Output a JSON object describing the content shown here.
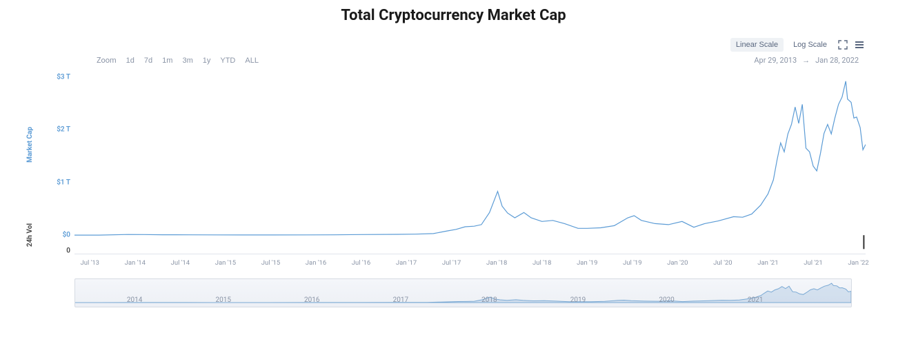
{
  "title": "Total Cryptocurrency Market Cap",
  "scale_buttons": {
    "linear": "Linear Scale",
    "log": "Log Scale"
  },
  "zoom": {
    "label": "Zoom",
    "options": [
      "1d",
      "7d",
      "1m",
      "3m",
      "1y",
      "YTD",
      "ALL"
    ]
  },
  "date_range": {
    "from": "Apr 29, 2013",
    "to": "Jan 28, 2022",
    "arrow": "→"
  },
  "axis_labels": {
    "market_cap": "Market Cap",
    "volume": "24h Vol"
  },
  "chart": {
    "type": "line",
    "line_color": "#5b9bd5",
    "line_width": 1.2,
    "background_color": "#ffffff",
    "yticks_mcap": [
      {
        "v": 0,
        "label": "$0"
      },
      {
        "v": 1,
        "label": "$1 T"
      },
      {
        "v": 2,
        "label": "$2 T"
      },
      {
        "v": 3,
        "label": "$3 T"
      }
    ],
    "ytick_vol": {
      "v": -0.3,
      "label": "0"
    },
    "ylim": [
      -0.35,
      3.1
    ],
    "x_start": 2013.33,
    "x_end": 2022.08,
    "xticks": [
      {
        "x": 2013.5,
        "label": "Jul '13"
      },
      {
        "x": 2014.0,
        "label": "Jan '14"
      },
      {
        "x": 2014.5,
        "label": "Jul '14"
      },
      {
        "x": 2015.0,
        "label": "Jan '15"
      },
      {
        "x": 2015.5,
        "label": "Jul '15"
      },
      {
        "x": 2016.0,
        "label": "Jan '16"
      },
      {
        "x": 2016.5,
        "label": "Jul '16"
      },
      {
        "x": 2017.0,
        "label": "Jan '17"
      },
      {
        "x": 2017.5,
        "label": "Jul '17"
      },
      {
        "x": 2018.0,
        "label": "Jan '18"
      },
      {
        "x": 2018.5,
        "label": "Jul '18"
      },
      {
        "x": 2019.0,
        "label": "Jan '19"
      },
      {
        "x": 2019.5,
        "label": "Jul '19"
      },
      {
        "x": 2020.0,
        "label": "Jan '20"
      },
      {
        "x": 2020.5,
        "label": "Jul '20"
      },
      {
        "x": 2021.0,
        "label": "Jan '21"
      },
      {
        "x": 2021.5,
        "label": "Jul '21"
      },
      {
        "x": 2022.0,
        "label": "Jan '22"
      }
    ],
    "series": [
      [
        2013.33,
        0.001
      ],
      [
        2013.6,
        0.002
      ],
      [
        2013.92,
        0.013
      ],
      [
        2014.1,
        0.012
      ],
      [
        2014.3,
        0.008
      ],
      [
        2014.6,
        0.007
      ],
      [
        2014.9,
        0.005
      ],
      [
        2015.2,
        0.004
      ],
      [
        2015.5,
        0.004
      ],
      [
        2015.9,
        0.006
      ],
      [
        2016.2,
        0.007
      ],
      [
        2016.5,
        0.012
      ],
      [
        2016.9,
        0.016
      ],
      [
        2017.1,
        0.02
      ],
      [
        2017.3,
        0.03
      ],
      [
        2017.45,
        0.08
      ],
      [
        2017.55,
        0.11
      ],
      [
        2017.65,
        0.16
      ],
      [
        2017.75,
        0.17
      ],
      [
        2017.83,
        0.2
      ],
      [
        2017.92,
        0.43
      ],
      [
        2018.01,
        0.83
      ],
      [
        2018.06,
        0.55
      ],
      [
        2018.12,
        0.42
      ],
      [
        2018.2,
        0.33
      ],
      [
        2018.3,
        0.43
      ],
      [
        2018.38,
        0.33
      ],
      [
        2018.5,
        0.26
      ],
      [
        2018.62,
        0.28
      ],
      [
        2018.75,
        0.22
      ],
      [
        2018.9,
        0.13
      ],
      [
        2019.0,
        0.13
      ],
      [
        2019.15,
        0.14
      ],
      [
        2019.3,
        0.18
      ],
      [
        2019.45,
        0.33
      ],
      [
        2019.52,
        0.37
      ],
      [
        2019.6,
        0.28
      ],
      [
        2019.75,
        0.22
      ],
      [
        2019.9,
        0.2
      ],
      [
        2020.05,
        0.26
      ],
      [
        2020.18,
        0.15
      ],
      [
        2020.3,
        0.22
      ],
      [
        2020.45,
        0.27
      ],
      [
        2020.62,
        0.35
      ],
      [
        2020.72,
        0.34
      ],
      [
        2020.82,
        0.4
      ],
      [
        2020.92,
        0.57
      ],
      [
        2021.0,
        0.78
      ],
      [
        2021.06,
        1.05
      ],
      [
        2021.1,
        1.42
      ],
      [
        2021.14,
        1.75
      ],
      [
        2021.18,
        1.58
      ],
      [
        2021.22,
        1.92
      ],
      [
        2021.26,
        2.1
      ],
      [
        2021.3,
        2.43
      ],
      [
        2021.34,
        2.12
      ],
      [
        2021.38,
        2.48
      ],
      [
        2021.42,
        1.65
      ],
      [
        2021.46,
        1.58
      ],
      [
        2021.5,
        1.31
      ],
      [
        2021.54,
        1.22
      ],
      [
        2021.58,
        1.55
      ],
      [
        2021.62,
        1.93
      ],
      [
        2021.66,
        2.1
      ],
      [
        2021.7,
        1.92
      ],
      [
        2021.74,
        2.22
      ],
      [
        2021.78,
        2.48
      ],
      [
        2021.82,
        2.62
      ],
      [
        2021.86,
        2.92
      ],
      [
        2021.88,
        2.58
      ],
      [
        2021.92,
        2.52
      ],
      [
        2021.95,
        2.22
      ],
      [
        2021.98,
        2.24
      ],
      [
        2022.02,
        2.04
      ],
      [
        2022.05,
        1.62
      ],
      [
        2022.08,
        1.72
      ]
    ],
    "volume_bar": {
      "x": 2022.06,
      "h": 0.25,
      "color": "#333333"
    }
  },
  "navigator": {
    "line_color": "#7aa9d4",
    "fill_color": "rgba(122,169,212,0.25)",
    "bg_top": "#f4f6fa",
    "bg_bottom": "#edf0f5",
    "ticks": [
      {
        "x": 2014,
        "label": "2014"
      },
      {
        "x": 2015,
        "label": "2015"
      },
      {
        "x": 2016,
        "label": "2016"
      },
      {
        "x": 2017,
        "label": "2017"
      },
      {
        "x": 2018,
        "label": "2018"
      },
      {
        "x": 2019,
        "label": "2019"
      },
      {
        "x": 2020,
        "label": "2020"
      },
      {
        "x": 2021,
        "label": "2021"
      }
    ]
  }
}
